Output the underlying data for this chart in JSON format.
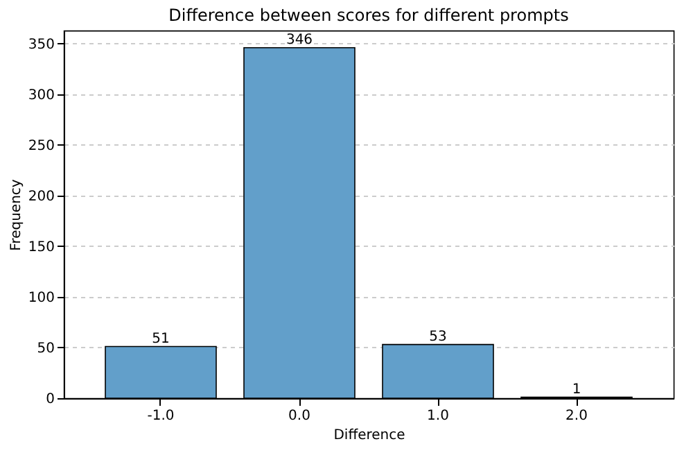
{
  "chart_data": {
    "type": "bar",
    "title": "Difference between scores for different prompts",
    "xlabel": "Difference",
    "ylabel": "Frequency",
    "categories": [
      "-1.0",
      "0.0",
      "1.0",
      "2.0"
    ],
    "values": [
      51,
      346,
      53,
      1
    ],
    "color": "#629fca",
    "ylim": [
      0,
      363
    ],
    "yticks": [
      0,
      50,
      100,
      150,
      200,
      250,
      300,
      350
    ],
    "grid": "y",
    "data_labels": true
  }
}
